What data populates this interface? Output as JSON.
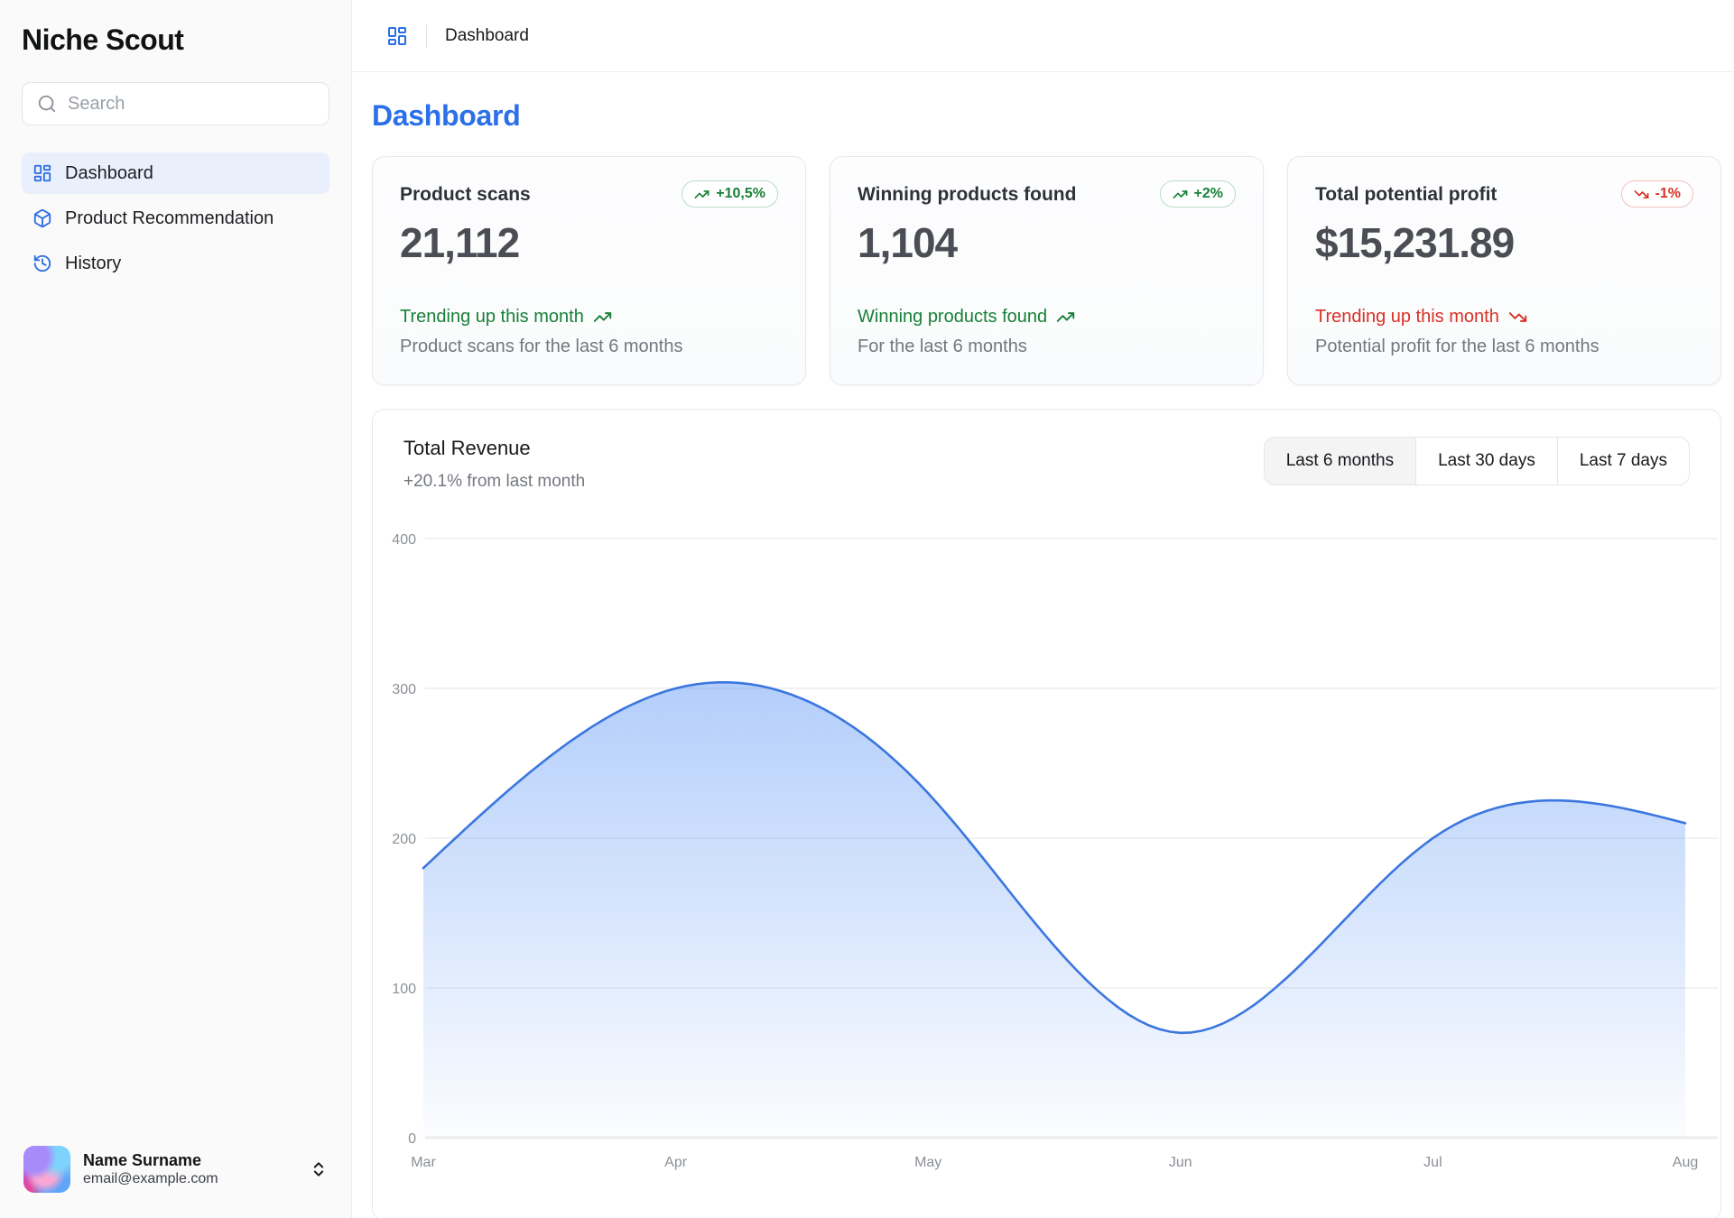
{
  "sidebar": {
    "app_name": "Niche Scout",
    "search_placeholder": "Search",
    "items": [
      {
        "label": "Dashboard",
        "icon": "layout-dashboard-icon",
        "active": true
      },
      {
        "label": "Product Recommendation",
        "icon": "package-icon",
        "active": false
      },
      {
        "label": "History",
        "icon": "history-icon",
        "active": false
      }
    ],
    "user": {
      "name": "Name Surname",
      "email": "email@example.com"
    }
  },
  "header": {
    "breadcrumb": "Dashboard"
  },
  "page": {
    "title": "Dashboard"
  },
  "stat_cards": [
    {
      "title": "Product scans",
      "badge": "+10,5%",
      "badge_trend": "up",
      "value": "21,112",
      "trend_label": "Trending up this month",
      "trend_dir": "up",
      "subtitle": "Product scans for the last 6 months"
    },
    {
      "title": "Winning products found",
      "badge": "+2%",
      "badge_trend": "up",
      "value": "1,104",
      "trend_label": "Winning products found",
      "trend_dir": "up",
      "subtitle": "For the last 6 months"
    },
    {
      "title": "Total potential profit",
      "badge": "-1%",
      "badge_trend": "down",
      "value": "$15,231.89",
      "trend_label": "Trending up this month",
      "trend_dir": "down",
      "subtitle": "Potential profit for the last 6 months"
    }
  ],
  "revenue_card": {
    "title": "Total Revenue",
    "subtitle": "+20.1% from last month",
    "range_buttons": [
      {
        "label": "Last 6 months",
        "active": true
      },
      {
        "label": "Last 30 days",
        "active": false
      },
      {
        "label": "Last 7 days",
        "active": false
      }
    ]
  },
  "chart_data": {
    "type": "area",
    "title": "Total Revenue",
    "x": [
      "Mar",
      "Apr",
      "May",
      "Jun",
      "Jul",
      "Aug"
    ],
    "series": [
      {
        "name": "Revenue",
        "values": [
          180,
          300,
          230,
          70,
          200,
          210
        ]
      }
    ],
    "ylim": [
      0,
      400
    ],
    "yticks": [
      0,
      100,
      200,
      300,
      400
    ],
    "grid": true,
    "curve": "natural",
    "legend": "none",
    "line_color": "#3b76e0",
    "fill_top": "rgba(66,133,244,0.40)",
    "fill_bottom": "rgba(66,133,244,0.02)",
    "grid_color": "#ededee",
    "tick_color": "#8b9097"
  },
  "colors": {
    "accent": "#2b6de4",
    "title_blue": "#2b70e8",
    "green": "#188038",
    "red": "#d93025"
  }
}
